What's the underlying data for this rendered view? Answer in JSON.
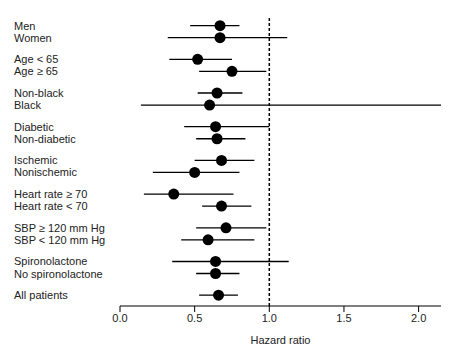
{
  "chart_data": {
    "type": "forest",
    "x_label": "Hazard ratio",
    "categories": [
      "Men",
      "Women",
      "Age < 65",
      "Age ≥ 65",
      "Non-black",
      "Black",
      "Diabetic",
      "Non-diabetic",
      "Ischemic",
      "Nonischemic",
      "Heart rate ≥ 70",
      "Heart rate < 70",
      "SBP ≥ 120 mm Hg",
      "SBP < 120 mm Hg",
      "Spironolactone",
      "No spironolactone",
      "All patients"
    ],
    "values": [
      0.67,
      0.67,
      0.52,
      0.75,
      0.65,
      0.6,
      0.64,
      0.65,
      0.68,
      0.5,
      0.36,
      0.68,
      0.71,
      0.59,
      0.64,
      0.64,
      0.66
    ],
    "ci_lower": [
      0.47,
      0.32,
      0.33,
      0.53,
      0.52,
      0.14,
      0.43,
      0.51,
      0.5,
      0.22,
      0.16,
      0.55,
      0.51,
      0.41,
      0.35,
      0.51,
      0.53
    ],
    "ci_upper": [
      0.8,
      1.12,
      0.75,
      0.98,
      0.82,
      2.2,
      1.0,
      0.84,
      0.9,
      0.8,
      0.76,
      0.88,
      0.98,
      0.9,
      1.13,
      0.8,
      0.79
    ],
    "xlim": [
      0,
      2.15
    ],
    "xticks": [
      {
        "value": 0,
        "label": "0.0"
      },
      {
        "value": 0.5,
        "label": "0.5"
      },
      {
        "value": 1,
        "label": "1.0"
      },
      {
        "value": 1.5,
        "label": "1.5"
      },
      {
        "value": 2,
        "label": "2.0"
      }
    ],
    "reference_value": 1,
    "color": "#000000",
    "marker": "circle",
    "grid": false
  }
}
